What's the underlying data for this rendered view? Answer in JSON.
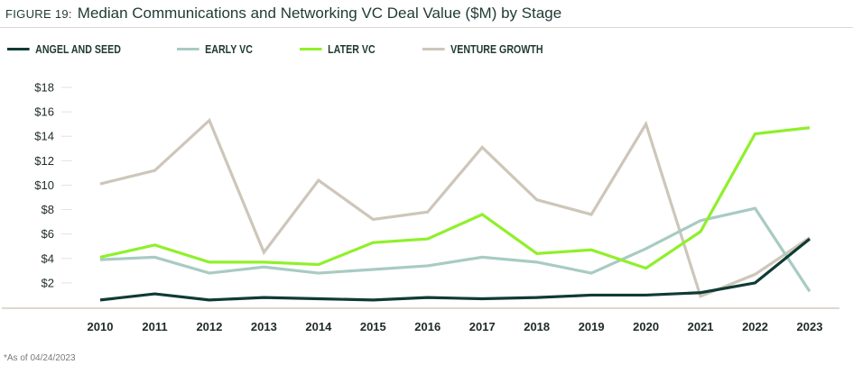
{
  "header": {
    "figure_label": "FIGURE 19:",
    "title": "Median Communications and Networking VC Deal Value ($M) by Stage"
  },
  "footnote": "*As of 04/24/2023",
  "chart_data": {
    "type": "line",
    "title": "Median Communications and Networking VC Deal Value ($M) by Stage",
    "x": [
      "2010",
      "2011",
      "2012",
      "2013",
      "2014",
      "2015",
      "2016",
      "2017",
      "2018",
      "2019",
      "2020",
      "2021",
      "2022",
      "2023"
    ],
    "ylim": [
      0,
      18
    ],
    "yticks": [
      2,
      4,
      6,
      8,
      10,
      12,
      14,
      16,
      18
    ],
    "ytick_labels": [
      "$2",
      "$4",
      "$6",
      "$8",
      "$10",
      "$12",
      "$14",
      "$16",
      "$18"
    ],
    "legend_position": "top-left",
    "grid": false,
    "series": [
      {
        "name": "ANGEL AND SEED",
        "color": "#0f3b35",
        "values": [
          0.6,
          1.1,
          0.6,
          0.8,
          0.7,
          0.6,
          0.8,
          0.7,
          0.8,
          1.0,
          1.0,
          1.2,
          2.0,
          5.6
        ]
      },
      {
        "name": "EARLY VC",
        "color": "#a8cbc3",
        "values": [
          3.9,
          4.1,
          2.8,
          3.3,
          2.8,
          3.1,
          3.4,
          4.1,
          3.7,
          2.8,
          4.8,
          7.1,
          8.1,
          1.3
        ]
      },
      {
        "name": "LATER VC",
        "color": "#8ff02a",
        "values": [
          4.1,
          5.1,
          3.7,
          3.7,
          3.5,
          5.3,
          5.6,
          7.6,
          4.4,
          4.7,
          3.2,
          6.2,
          14.2,
          14.7
        ]
      },
      {
        "name": "VENTURE GROWTH",
        "color": "#cec6b9",
        "values": [
          10.1,
          11.2,
          15.3,
          4.5,
          10.4,
          7.2,
          7.8,
          13.1,
          8.8,
          7.6,
          15.0,
          0.9,
          2.7,
          5.7
        ]
      }
    ]
  }
}
